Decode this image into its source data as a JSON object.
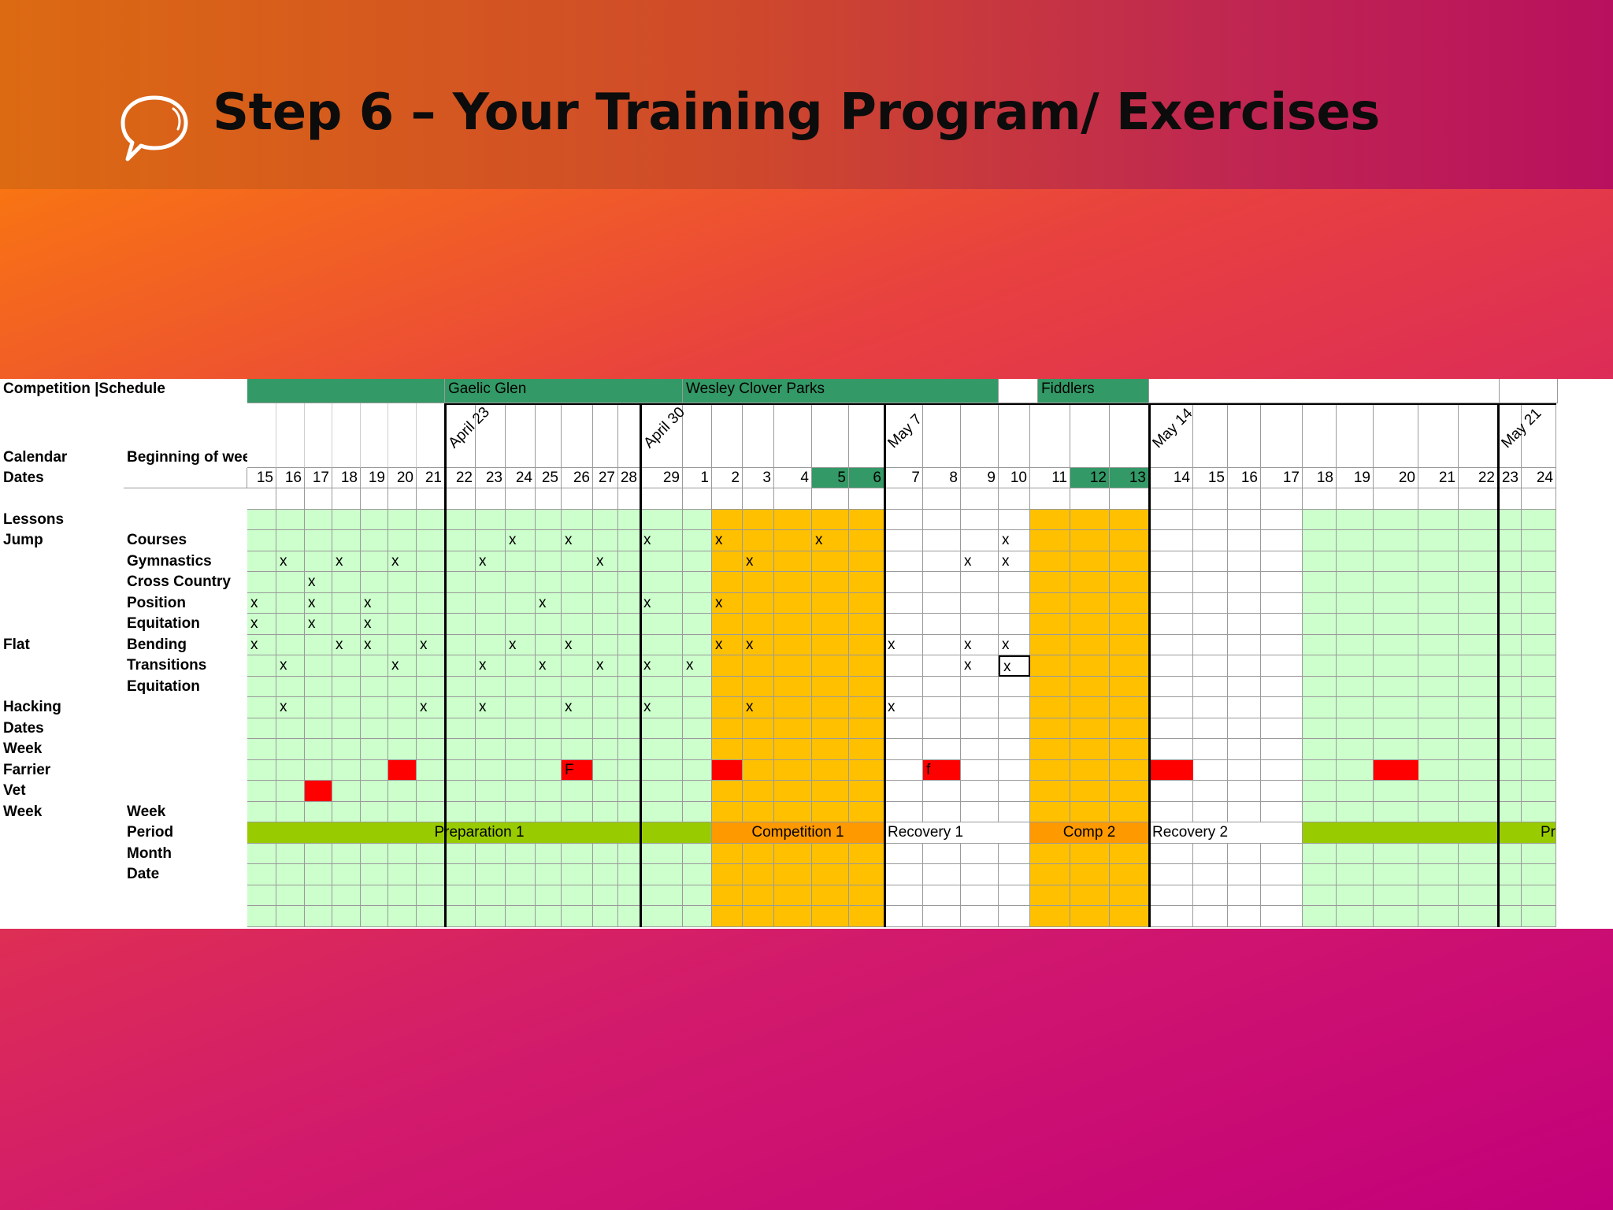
{
  "slide": {
    "title": "Step 6 – Your Training Program/ Exercises"
  },
  "icons": {
    "bubble": "speech-bubble-icon"
  },
  "colors": {
    "light_green": "#ccffcc",
    "orange": "#ffc000",
    "dark_green": "#339966",
    "red": "#ff0000",
    "period_green": "#99cc00",
    "period_orange": "#ff9900",
    "white": "#ffffff"
  },
  "sheet": {
    "header_label": "Competition |Schedule",
    "calendar_label": "Calendar",
    "beginning_label": "Beginning of week",
    "dates_label": "Dates",
    "competitions": [
      "Gaelic Glen",
      "Wesley Clover Parks",
      "Fiddlers"
    ],
    "week_labels": [
      "April 23",
      "April 30",
      "May 7",
      "May 14",
      "May 21"
    ],
    "days": [
      "15",
      "16",
      "17",
      "18",
      "19",
      "20",
      "21",
      "22",
      "23",
      "24",
      "25",
      "26",
      "27",
      "28",
      "29",
      "1",
      "2",
      "3",
      "4",
      "5",
      "6",
      "7",
      "8",
      "9",
      "10",
      "11",
      "12",
      "13",
      "14",
      "15",
      "16",
      "17",
      "18",
      "19",
      "20",
      "21",
      "22",
      "23",
      "24"
    ],
    "rows": [
      {
        "a": "",
        "b": ""
      },
      {
        "a": "Lessons",
        "b": ""
      },
      {
        "a": "Jump",
        "b": "Courses"
      },
      {
        "a": "",
        "b": "Gymnastics"
      },
      {
        "a": "",
        "b": "Cross Country"
      },
      {
        "a": "",
        "b": "Position"
      },
      {
        "a": "",
        "b": "Equitation"
      },
      {
        "a": "Flat",
        "b": "Bending"
      },
      {
        "a": "",
        "b": "Transitions"
      },
      {
        "a": "",
        "b": "Equitation"
      },
      {
        "a": "Hacking",
        "b": ""
      },
      {
        "a": "Dates",
        "b": ""
      },
      {
        "a": "Week",
        "b": ""
      },
      {
        "a": "Farrier",
        "b": ""
      },
      {
        "a": "Vet",
        "b": ""
      },
      {
        "a": "Week",
        "b": "Week"
      },
      {
        "a": "",
        "b": "Period"
      },
      {
        "a": "",
        "b": "Month"
      },
      {
        "a": "",
        "b": "Date"
      },
      {
        "a": "",
        "b": ""
      },
      {
        "a": "",
        "b": ""
      }
    ],
    "marks": [
      {
        "row": 2,
        "days": [
          9,
          11,
          14,
          16,
          19,
          24
        ]
      },
      {
        "row": 3,
        "days": [
          1,
          3,
          5,
          8,
          12,
          17,
          23,
          24
        ]
      },
      {
        "row": 4,
        "days": [
          2
        ]
      },
      {
        "row": 5,
        "days": [
          0,
          2,
          4,
          10,
          14,
          16
        ]
      },
      {
        "row": 6,
        "days": [
          0,
          2,
          4
        ]
      },
      {
        "row": 7,
        "days": [
          0,
          3,
          4,
          6,
          9,
          11,
          16,
          17,
          21,
          23,
          24
        ]
      },
      {
        "row": 8,
        "days": [
          1,
          5,
          8,
          10,
          12,
          14,
          15,
          23,
          24
        ]
      },
      {
        "row": 10,
        "days": [
          1,
          6,
          8,
          11,
          14,
          17,
          21
        ]
      }
    ],
    "farrier": [
      {
        "day": 5,
        "text": ""
      },
      {
        "day": 11,
        "text": "F"
      },
      {
        "day": 16,
        "text": ""
      },
      {
        "day": 22,
        "text": "f"
      },
      {
        "day": 28,
        "text": ""
      },
      {
        "day": 34,
        "text": ""
      }
    ],
    "vet": [
      {
        "day": 2,
        "text": ""
      }
    ],
    "periods": [
      {
        "name": "Preparation 1",
        "start": 0,
        "end": 15,
        "color": "#99cc00"
      },
      {
        "name": "Competition 1",
        "start": 16,
        "end": 20,
        "color": "#ff9900"
      },
      {
        "name": "Recovery 1",
        "start": 21,
        "end": 24,
        "color": "#ffffff"
      },
      {
        "name": "Comp 2",
        "start": 25,
        "end": 27,
        "color": "#ff9900"
      },
      {
        "name": "Recovery 2",
        "start": 28,
        "end": 31,
        "color": "#ffffff"
      },
      {
        "name": "Pr",
        "start": 32,
        "end": 38,
        "color": "#99cc00"
      }
    ],
    "mark_symbol": "x"
  }
}
